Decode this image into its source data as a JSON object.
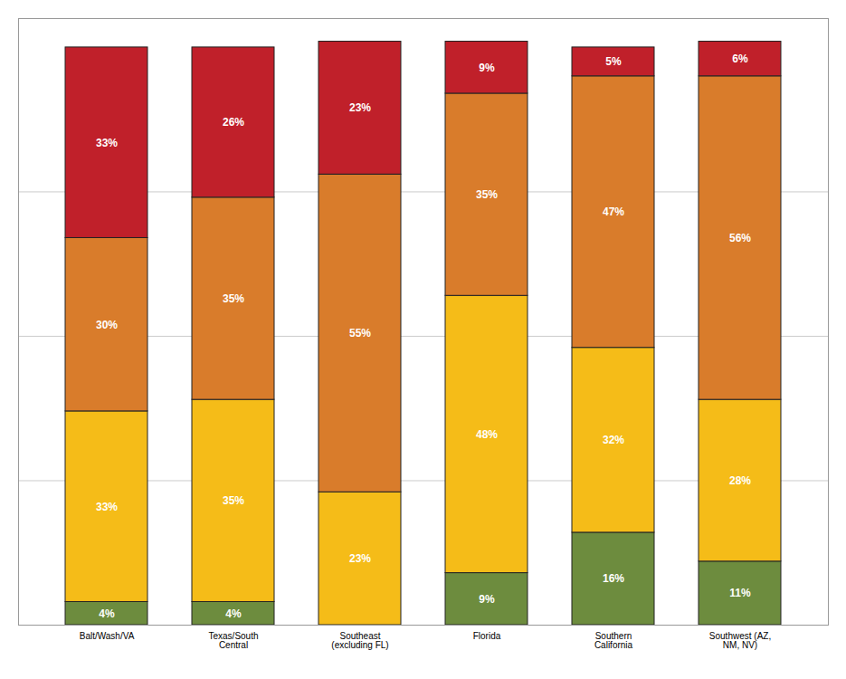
{
  "chart_data": {
    "type": "bar",
    "categories": [
      "Balt/Wash/VA",
      "Texas/South\nCentral",
      "Southeast\n(excluding FL)",
      "Florida",
      "Southern\nCalifornia",
      "Southwest (AZ,\nNM, NV)"
    ],
    "stacked": true,
    "series": [
      {
        "color": "#6d8c3e",
        "values": [
          4,
          4,
          0,
          9,
          16,
          11
        ],
        "value_labels": [
          "4%",
          "4%",
          null,
          "9%",
          "16%",
          "11%"
        ]
      },
      {
        "color": "#f5bc18",
        "values": [
          33,
          35,
          23,
          48,
          32,
          28
        ],
        "value_labels": [
          "33%",
          "35%",
          "23%",
          "48%",
          "32%",
          "28%"
        ]
      },
      {
        "color": "#d97c2b",
        "values": [
          30,
          35,
          55,
          35,
          47,
          56
        ],
        "value_labels": [
          "30%",
          "35%",
          "55%",
          "35%",
          "47%",
          "56%"
        ]
      },
      {
        "color": "#c0202a",
        "values": [
          33,
          26,
          23,
          9,
          5,
          6
        ],
        "value_labels": [
          "33%",
          "26%",
          "23%",
          "9%",
          "5%",
          "6%"
        ]
      }
    ],
    "ylim": [
      0,
      105
    ],
    "yticks": [
      25,
      50,
      75
    ],
    "grid": true,
    "tick_labels": "x",
    "data_labels": true
  }
}
